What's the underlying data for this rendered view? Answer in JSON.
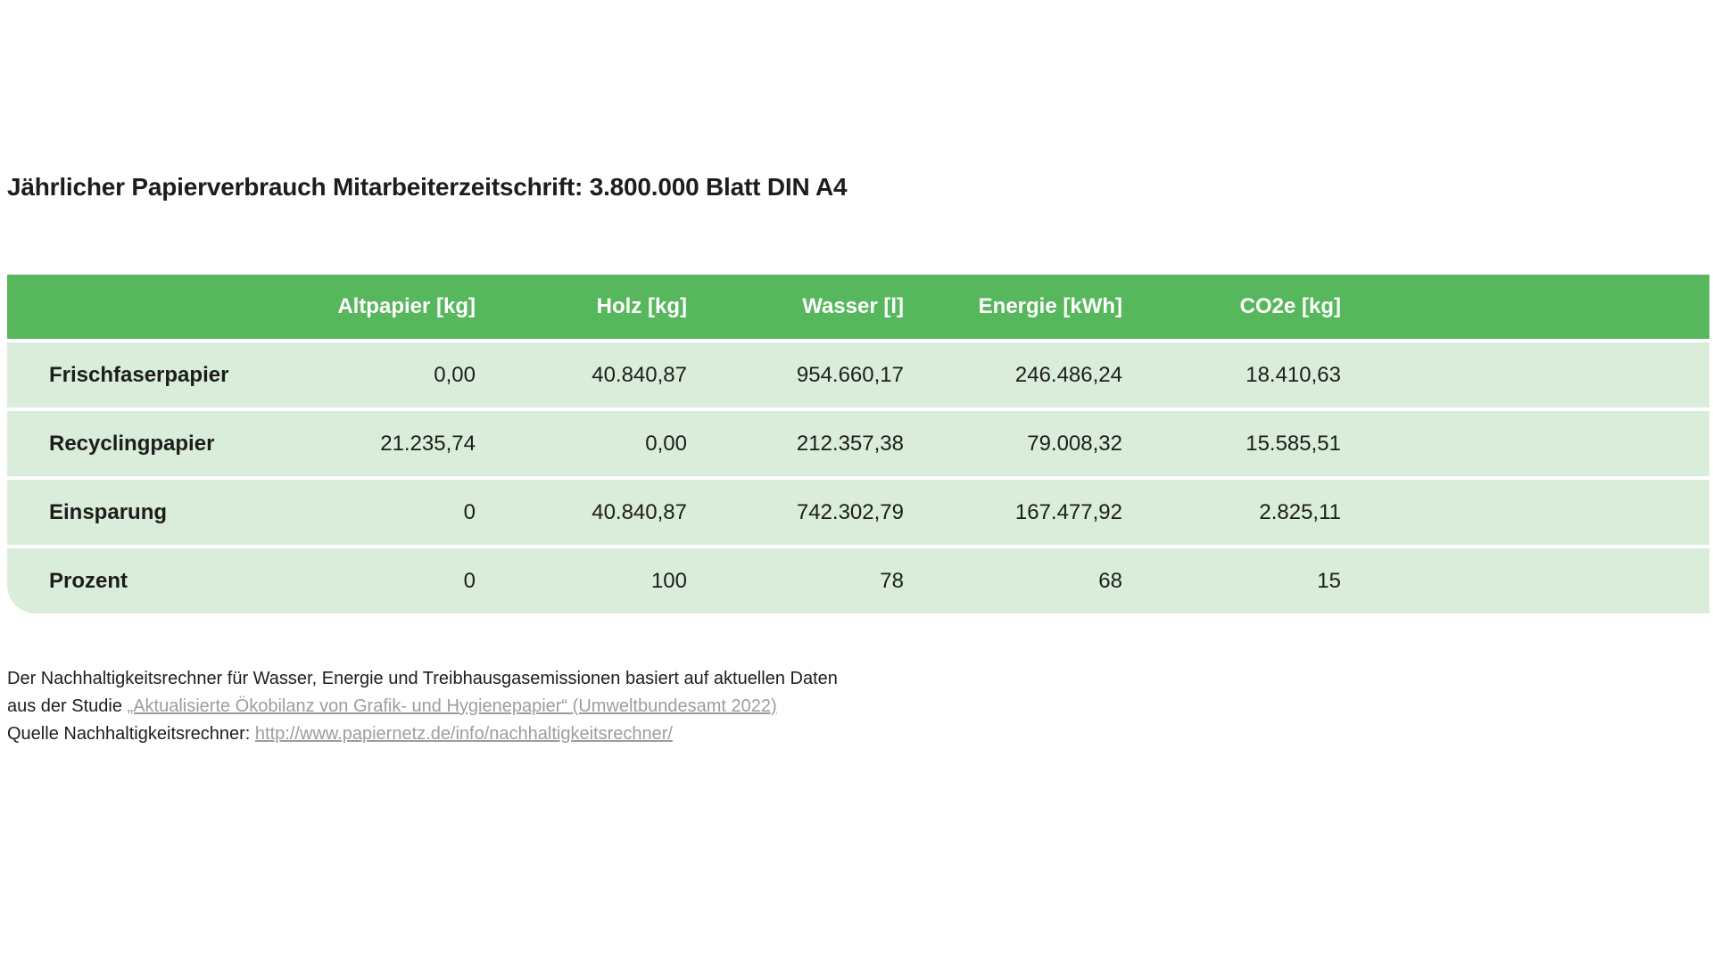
{
  "title": "Jährlicher Papierverbrauch Mitarbeiterzeitschrift: 3.800.000 Blatt DIN A4",
  "table": {
    "columns": [
      "Altpapier [kg]",
      "Holz [kg]",
      "Wasser [l]",
      "Energie [kWh]",
      "CO2e [kg]"
    ],
    "rows": [
      {
        "label": "Frischfaserpapier",
        "values": [
          "0,00",
          "40.840,87",
          "954.660,17",
          "246.486,24",
          "18.410,63"
        ]
      },
      {
        "label": "Recyclingpapier",
        "values": [
          "21.235,74",
          "0,00",
          "212.357,38",
          "79.008,32",
          "15.585,51"
        ]
      },
      {
        "label": "Einsparung",
        "values": [
          "0",
          "40.840,87",
          "742.302,79",
          "167.477,92",
          "2.825,11"
        ]
      },
      {
        "label": "Prozent",
        "values": [
          "0",
          "100",
          "78",
          "68",
          "15"
        ]
      }
    ]
  },
  "footer": {
    "line1": "Der Nachhaltigkeitsrechner für Wasser, Energie und Treibhausgasemissionen basiert auf aktuellen Daten",
    "line2_prefix": "aus der Studie ",
    "line2_link": "„Aktualisierte Ökobilanz von Grafik- und Hygienepapier“ (Umweltbundesamt 2022)",
    "line3_prefix": "Quelle Nachhaltigkeitsrechner: ",
    "line3_link": "http://www.papiernetz.de/info/nachhaltigkeitsrechner/"
  },
  "colors": {
    "header_green": "#57b75c",
    "row_green": "#d9edda",
    "text_dark": "#1d1d1b",
    "link_gray": "#9d9d9c"
  },
  "chart_data": {
    "type": "table",
    "title": "Jährlicher Papierverbrauch Mitarbeiterzeitschrift: 3.800.000 Blatt DIN A4",
    "categories": [
      "Altpapier [kg]",
      "Holz [kg]",
      "Wasser [l]",
      "Energie [kWh]",
      "CO2e [kg]"
    ],
    "series": [
      {
        "name": "Frischfaserpapier",
        "values": [
          0.0,
          40840.87,
          954660.17,
          246486.24,
          18410.63
        ]
      },
      {
        "name": "Recyclingpapier",
        "values": [
          21235.74,
          0.0,
          212357.38,
          79008.32,
          15585.51
        ]
      },
      {
        "name": "Einsparung",
        "values": [
          0,
          40840.87,
          742302.79,
          167477.92,
          2825.11
        ]
      },
      {
        "name": "Prozent",
        "values": [
          0,
          100,
          78,
          68,
          15
        ]
      }
    ]
  }
}
